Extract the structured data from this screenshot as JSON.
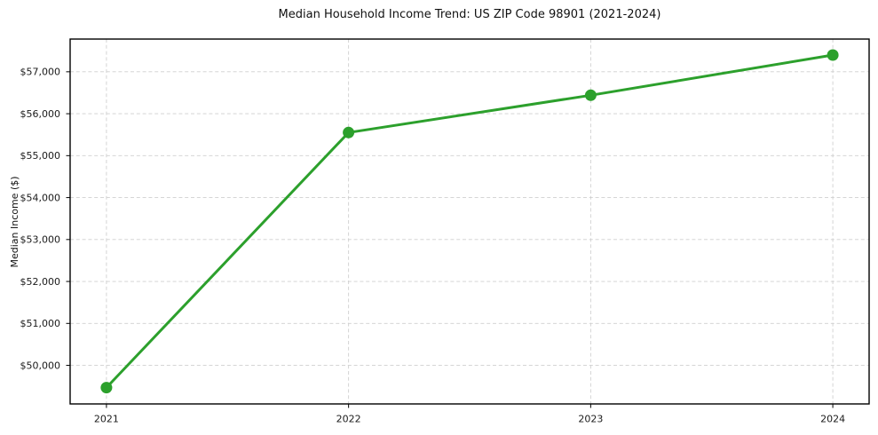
{
  "chart_data": {
    "type": "line",
    "title": "Median Household Income Trend: US ZIP Code 98901 (2021-2024)",
    "xlabel": "",
    "ylabel": "Median Income ($)",
    "x": [
      2021,
      2022,
      2023,
      2024
    ],
    "series": [
      {
        "name": "Median Household Income",
        "values": [
          49470,
          55550,
          56440,
          57400
        ]
      }
    ],
    "x_tick_labels": [
      "2021",
      "2022",
      "2023",
      "2024"
    ],
    "y_ticks": [
      50000,
      51000,
      52000,
      53000,
      54000,
      55000,
      56000,
      57000
    ],
    "y_tick_labels": [
      "$50,000",
      "$51,000",
      "$52,000",
      "$53,000",
      "$54,000",
      "$55,000",
      "$56,000",
      "$57,000"
    ],
    "xlim": [
      2020.85,
      2024.15
    ],
    "ylim": [
      49080,
      57780
    ],
    "grid": true,
    "grid_style": "dashed",
    "legend": false,
    "marker": "circle",
    "colors": {
      "line": "#2ca02c",
      "marker": "#2ca02c",
      "grid": "#cfcfcf",
      "axis_border": "#000000",
      "text": "#1a1a1a",
      "background": "#ffffff"
    }
  }
}
